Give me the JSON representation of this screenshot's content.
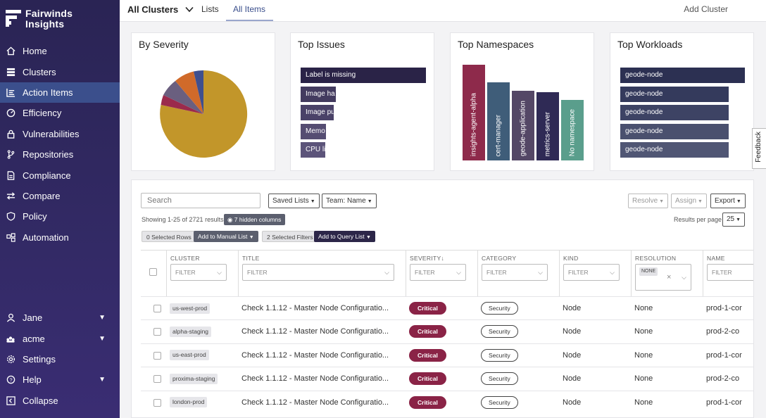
{
  "app": {
    "logo_line1": "Fairwinds",
    "logo_line2": "Insights"
  },
  "sidebar": {
    "items": [
      {
        "label": "Home",
        "icon": "home-icon"
      },
      {
        "label": "Clusters",
        "icon": "clusters-icon"
      },
      {
        "label": "Action Items",
        "icon": "list-icon",
        "active": true
      },
      {
        "label": "Efficiency",
        "icon": "gauge-icon"
      },
      {
        "label": "Vulnerabilities",
        "icon": "lock-icon"
      },
      {
        "label": "Repositories",
        "icon": "branch-icon"
      },
      {
        "label": "Compliance",
        "icon": "document-icon"
      },
      {
        "label": "Compare",
        "icon": "arrows-icon"
      },
      {
        "label": "Policy",
        "icon": "shield-icon"
      },
      {
        "label": "Automation",
        "icon": "automation-icon"
      }
    ],
    "bottom": [
      {
        "label": "Jane",
        "icon": "user-icon"
      },
      {
        "label": "acme",
        "icon": "org-icon"
      },
      {
        "label": "Settings",
        "icon": "gear-icon"
      },
      {
        "label": "Help",
        "icon": "help-icon"
      },
      {
        "label": "Collapse",
        "icon": "collapse-icon"
      }
    ]
  },
  "topbar": {
    "cluster_selector": "All Clusters",
    "tab_lists": "Lists",
    "tab_all_items": "All Items",
    "add_cluster": "Add Cluster"
  },
  "cards": {
    "severity": {
      "title": "By Severity"
    },
    "issues": {
      "title": "Top Issues",
      "items": [
        "Label is missing",
        "Image ha",
        "Image pu",
        "Memo",
        "CPU li"
      ]
    },
    "namespaces": {
      "title": "Top Namespaces",
      "items": [
        "insights-agent-alpha",
        "cert-manager",
        "geode-application",
        "metrics-server",
        "No namespace"
      ]
    },
    "workloads": {
      "title": "Top Workloads",
      "items": [
        "geode-node",
        "geode-node",
        "geode-node",
        "geode-node",
        "geode-node"
      ]
    }
  },
  "colors": {
    "sidebar": "#2a2454",
    "accent": "#3b4f8c",
    "critical": "#8a2346",
    "pie_main": "#c2962a",
    "ns_teal": "#5a9e8c"
  },
  "toolbar": {
    "search_placeholder": "Search",
    "saved_lists": "Saved Lists",
    "team": "Team: Name",
    "resolve": "Resolve",
    "assign": "Assign",
    "export": "Export",
    "showing": "Showing 1-25 of 2721 results",
    "hidden_columns": "7 hidden columns",
    "results_per_page": "Results per page",
    "per_page_value": "25",
    "selected_rows": "0 Selected Rows",
    "add_manual": "Add to Manual List",
    "selected_filters": "2 Selected Filters",
    "add_query": "Add to Query List"
  },
  "table": {
    "headers": {
      "cluster": "CLUSTER",
      "title": "TITLE",
      "severity": "SEVERITY",
      "category": "CATEGORY",
      "kind": "KIND",
      "resolution": "RESOLUTION",
      "name": "NAME"
    },
    "filter_label": "FILTER",
    "resolution_chip": "NONE",
    "rows": [
      {
        "cluster": "us-west-prod",
        "title": "Check 1.1.12 - Master Node Configuratio...",
        "severity": "Critical",
        "category": "Security",
        "kind": "Node",
        "resolution": "None",
        "name": "prod-1-cor"
      },
      {
        "cluster": "alpha-staging",
        "title": "Check 1.1.12 - Master Node Configuratio...",
        "severity": "Critical",
        "category": "Security",
        "kind": "Node",
        "resolution": "None",
        "name": "prod-2-co"
      },
      {
        "cluster": "us-east-prod",
        "title": "Check 1.1.12 - Master Node Configuratio...",
        "severity": "Critical",
        "category": "Security",
        "kind": "Node",
        "resolution": "None",
        "name": "prod-1-cor"
      },
      {
        "cluster": "proxima-staging",
        "title": "Check 1.1.12 - Master Node Configuratio...",
        "severity": "Critical",
        "category": "Security",
        "kind": "Node",
        "resolution": "None",
        "name": "prod-2-co"
      },
      {
        "cluster": "london-prod",
        "title": "Check 1.1.12 - Master Node Configuratio...",
        "severity": "Critical",
        "category": "Security",
        "kind": "Node",
        "resolution": "None",
        "name": "prod-1-cor"
      }
    ]
  },
  "feedback": "Feedback"
}
